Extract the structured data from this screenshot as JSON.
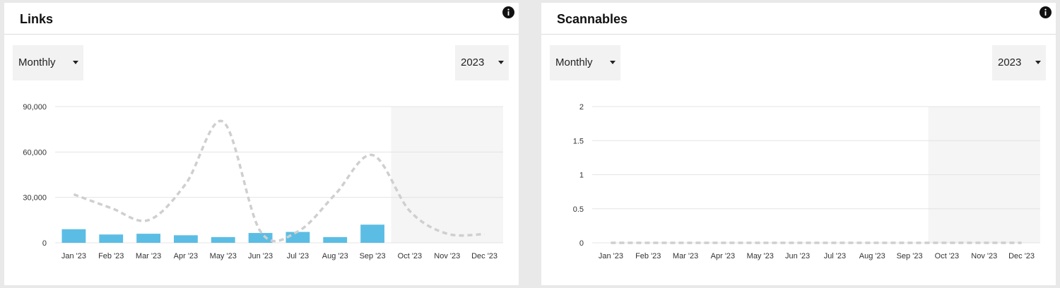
{
  "cards": [
    {
      "title": "Links",
      "period": {
        "selected": "Monthly"
      },
      "year": {
        "selected": "2023"
      },
      "info_icon": "info-icon",
      "chart_data": {
        "type": "bar",
        "categories": [
          "Jan '23",
          "Feb '23",
          "Mar '23",
          "Apr '23",
          "May '23",
          "Jun '23",
          "Jul '23",
          "Aug '23",
          "Sep '23",
          "Oct '23",
          "Nov '23",
          "Dec '23"
        ],
        "series": [
          {
            "kind": "bar",
            "color": "#5bbde4",
            "values": [
              9000,
              5500,
              6000,
              5000,
              3800,
              6500,
              7200,
              3800,
              12000,
              null,
              null,
              null
            ]
          },
          {
            "kind": "line",
            "style": "dashed",
            "color": "#cfcfcf",
            "values": [
              32000,
              23000,
              15000,
              39000,
              80000,
              7500,
              7500,
              32000,
              58000,
              21000,
              6000,
              5800
            ]
          }
        ],
        "y_ticks": [
          "0",
          "30,000",
          "60,000",
          "90,000"
        ],
        "y_tick_values": [
          0,
          30000,
          60000,
          90000
        ],
        "ylim": [
          0,
          90000
        ],
        "future_shade_from": "Oct '23",
        "grid": true
      }
    },
    {
      "title": "Scannables",
      "period": {
        "selected": "Monthly"
      },
      "year": {
        "selected": "2023"
      },
      "info_icon": "info-icon",
      "chart_data": {
        "type": "bar",
        "categories": [
          "Jan '23",
          "Feb '23",
          "Mar '23",
          "Apr '23",
          "May '23",
          "Jun '23",
          "Jul '23",
          "Aug '23",
          "Sep '23",
          "Oct '23",
          "Nov '23",
          "Dec '23"
        ],
        "series": [
          {
            "kind": "bar",
            "color": "#5bbde4",
            "values": [
              0,
              0,
              0,
              0,
              0,
              0,
              0,
              0,
              0,
              null,
              null,
              null
            ]
          },
          {
            "kind": "line",
            "style": "dashed",
            "color": "#cfcfcf",
            "values": [
              0,
              0,
              0,
              0,
              0,
              0,
              0,
              0,
              0,
              0,
              0,
              0
            ]
          }
        ],
        "y_ticks": [
          "0",
          "0.5",
          "1",
          "1.5",
          "2"
        ],
        "y_tick_values": [
          0,
          0.5,
          1,
          1.5,
          2
        ],
        "ylim": [
          0,
          2
        ],
        "future_shade_from": "Oct '23",
        "grid": true
      }
    }
  ]
}
